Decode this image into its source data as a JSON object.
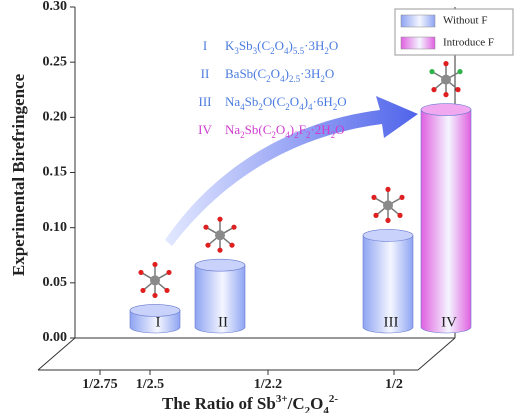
{
  "chart_data": {
    "type": "bar3d",
    "y_label": "Experimental Birefringence",
    "x_label": [
      {
        "text": "The Ratio of Sb",
        "baseline": "normal"
      },
      {
        "text": "3+",
        "baseline": "super"
      },
      {
        "text": "/C",
        "baseline": "normal"
      },
      {
        "text": "2",
        "baseline": "sub"
      },
      {
        "text": "O",
        "baseline": "normal"
      },
      {
        "text": "4",
        "baseline": "sub"
      },
      {
        "text": "2-",
        "baseline": "super"
      }
    ],
    "categories": [
      "1/2.75",
      "1/2.5",
      "1/2.2",
      "1/2"
    ],
    "ylim": [
      0,
      0.3
    ],
    "yticks": [
      {
        "value": 0,
        "label": "0.00"
      },
      {
        "value": 0.05,
        "label": "0.05"
      },
      {
        "value": 0.1,
        "label": "0.10"
      },
      {
        "value": 0.15,
        "label": "0.15"
      },
      {
        "value": 0.2,
        "label": "0.20"
      },
      {
        "value": 0.25,
        "label": "0.25"
      },
      {
        "value": 0.3,
        "label": "0.30"
      }
    ],
    "legend": "upper right",
    "series": [
      {
        "name": "Without F",
        "color": "#8ea4f2",
        "values": [
          0.025,
          0.066,
          null,
          0.093
        ],
        "bar_labels": [
          "I",
          "II",
          null,
          "III"
        ]
      },
      {
        "name": "Introduce F",
        "color": "#e060e0",
        "values": [
          null,
          null,
          null,
          0.207
        ],
        "bar_labels": [
          null,
          null,
          null,
          "IV"
        ]
      }
    ],
    "compounds": [
      {
        "numeral": "I",
        "color": "#4a7be0",
        "formula": [
          "K",
          "3",
          "Sb",
          "3",
          "(C",
          "2",
          "O",
          "4",
          ")",
          "5.5",
          "·3H",
          "2",
          "O"
        ]
      },
      {
        "numeral": "II",
        "color": "#4a7be0",
        "formula": [
          "BaSb(C",
          "2",
          "O",
          "4",
          ")",
          "2.5",
          "·3H",
          "2",
          "O"
        ]
      },
      {
        "numeral": "III",
        "color": "#4a7be0",
        "formula": [
          "Na",
          "4",
          "Sb",
          "2",
          "O(C",
          "2",
          "O",
          "4",
          ")",
          "4",
          "·6H",
          "2",
          "O"
        ]
      },
      {
        "numeral": "IV",
        "color": "#d03cd0",
        "formula": [
          "Na",
          "2",
          "Sb(C",
          "2",
          "O",
          "4",
          ")",
          "2",
          "F",
          "2",
          "·2H",
          "2",
          "O"
        ]
      }
    ]
  }
}
